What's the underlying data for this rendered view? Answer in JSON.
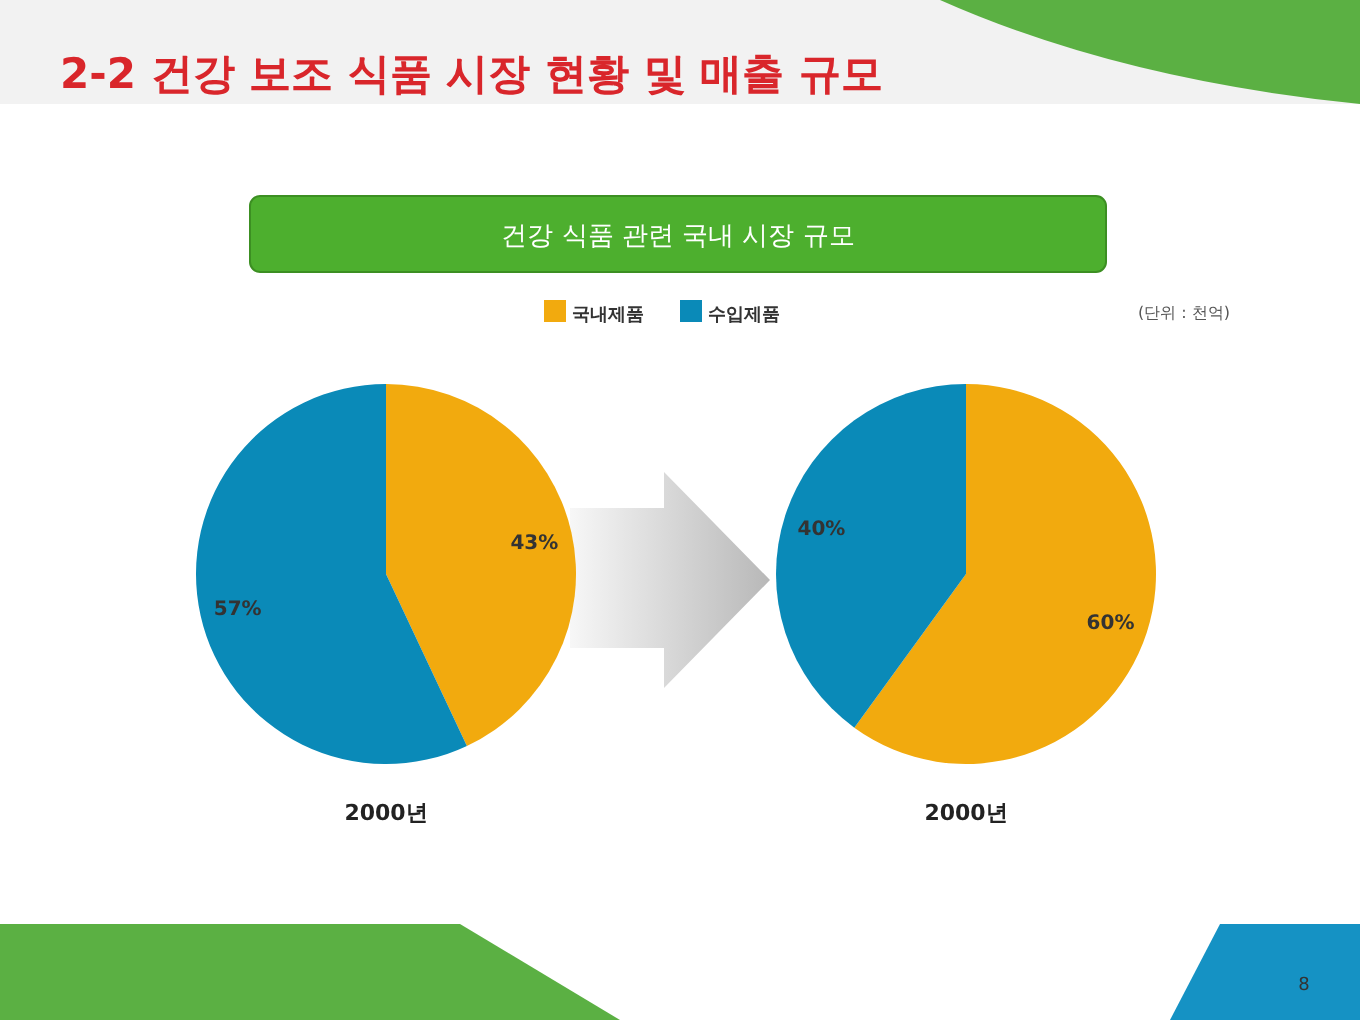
{
  "chart_data": [
    {
      "type": "pie",
      "title": "2-2 건강 보조 식품 시장 현황 및 매출 규모",
      "subtitle": "건강 식품 관련 국내 시장 규모",
      "categories": [
        "국내제품",
        "수입제품"
      ],
      "values": [
        43,
        57
      ],
      "value_labels": [
        "43%",
        "57%"
      ],
      "colors": [
        "#f2aa0e",
        "#0a8ab8"
      ],
      "xlabel": "2000년",
      "legend": "top",
      "annotations": [
        "(단위 : 천억)",
        "8"
      ]
    },
    {
      "type": "pie",
      "categories": [
        null,
        null
      ],
      "values": [
        60,
        40
      ],
      "value_labels": [
        "60%",
        "40%"
      ],
      "colors": [
        "#f2aa0e",
        "#0a8ab8"
      ],
      "xlabel": "2000년"
    }
  ]
}
